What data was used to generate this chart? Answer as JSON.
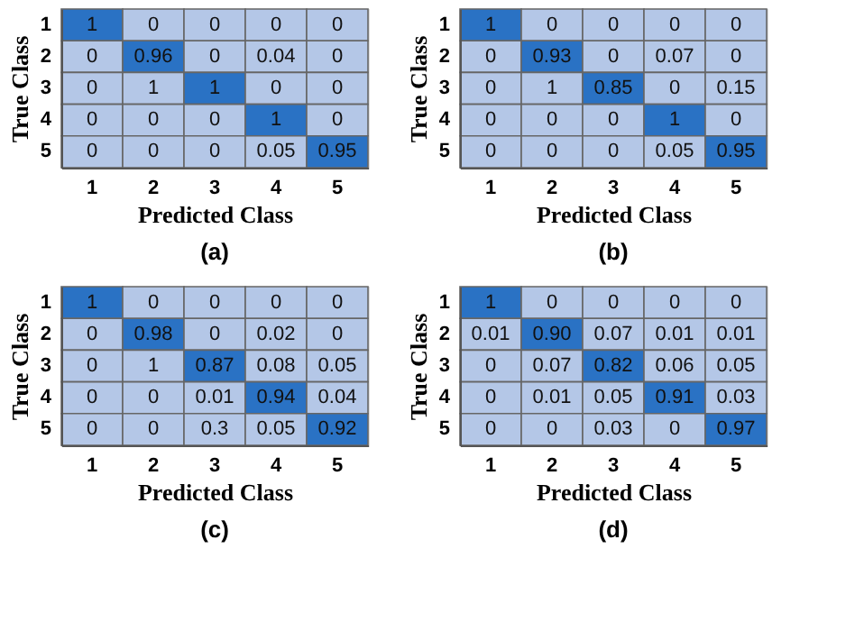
{
  "chart_data": [
    {
      "type": "heatmap",
      "title": "(a)",
      "xlabel": "Predicted Class",
      "ylabel": "True Class",
      "categories": [
        "1",
        "2",
        "3",
        "4",
        "5"
      ],
      "y_categories": [
        "1",
        "2",
        "3",
        "4",
        "5"
      ],
      "data_labels": true,
      "cells": [
        [
          1,
          0,
          0,
          0,
          0
        ],
        [
          0,
          0.96,
          0,
          0.04,
          0
        ],
        [
          0,
          1,
          1,
          0,
          0
        ],
        [
          0,
          0,
          0,
          1,
          0
        ],
        [
          0,
          0,
          0,
          0.05,
          0.95
        ]
      ],
      "colors": [
        [
          "#2a72c4",
          "#b4c7e7",
          "#b4c7e7",
          "#b4c7e7",
          "#b4c7e7"
        ],
        [
          "#b4c7e7",
          "#2a72c4",
          "#b4c7e7",
          "#b4c7e7",
          "#b4c7e7"
        ],
        [
          "#b4c7e7",
          "#b4c7e7",
          "#2a72c4",
          "#b4c7e7",
          "#b4c7e7"
        ],
        [
          "#b4c7e7",
          "#b4c7e7",
          "#b4c7e7",
          "#2a72c4",
          "#b4c7e7"
        ],
        [
          "#b4c7e7",
          "#b4c7e7",
          "#b4c7e7",
          "#b4c7e7",
          "#2a72c4"
        ]
      ]
    },
    {
      "type": "heatmap",
      "title": "(b)",
      "xlabel": "Predicted Class",
      "ylabel": "True Class",
      "categories": [
        "1",
        "2",
        "3",
        "4",
        "5"
      ],
      "y_categories": [
        "1",
        "2",
        "3",
        "4",
        "5"
      ],
      "data_labels": true,
      "cells": [
        [
          1,
          0,
          0,
          0,
          0
        ],
        [
          0,
          0.93,
          0,
          0.07,
          0
        ],
        [
          0,
          1,
          0.85,
          0,
          0.15
        ],
        [
          0,
          0,
          0,
          1,
          0
        ],
        [
          0,
          0,
          0,
          0.05,
          0.95
        ]
      ],
      "colors": [
        [
          "#2a72c4",
          "#b4c7e7",
          "#b4c7e7",
          "#b4c7e7",
          "#b4c7e7"
        ],
        [
          "#b4c7e7",
          "#2a72c4",
          "#b4c7e7",
          "#b4c7e7",
          "#b4c7e7"
        ],
        [
          "#b4c7e7",
          "#b4c7e7",
          "#2a72c4",
          "#b4c7e7",
          "#b4c7e7"
        ],
        [
          "#b4c7e7",
          "#b4c7e7",
          "#b4c7e7",
          "#2a72c4",
          "#b4c7e7"
        ],
        [
          "#b4c7e7",
          "#b4c7e7",
          "#b4c7e7",
          "#b4c7e7",
          "#2a72c4"
        ]
      ]
    },
    {
      "type": "heatmap",
      "title": "(c)",
      "xlabel": "Predicted Class",
      "ylabel": "True Class",
      "categories": [
        "1",
        "2",
        "3",
        "4",
        "5"
      ],
      "y_categories": [
        "1",
        "2",
        "3",
        "4",
        "5"
      ],
      "data_labels": true,
      "cells": [
        [
          1,
          0,
          0,
          0,
          0
        ],
        [
          0,
          0.98,
          0,
          0.02,
          0
        ],
        [
          0,
          1,
          0.87,
          0.08,
          0.05
        ],
        [
          0,
          0,
          0.01,
          0.94,
          0.04
        ],
        [
          0,
          0,
          0.3,
          0.05,
          0.92
        ]
      ],
      "colors": [
        [
          "#2a72c4",
          "#b4c7e7",
          "#b4c7e7",
          "#b4c7e7",
          "#b4c7e7"
        ],
        [
          "#b4c7e7",
          "#2a72c4",
          "#b4c7e7",
          "#b4c7e7",
          "#b4c7e7"
        ],
        [
          "#b4c7e7",
          "#b4c7e7",
          "#2a72c4",
          "#b4c7e7",
          "#b4c7e7"
        ],
        [
          "#b4c7e7",
          "#b4c7e7",
          "#b4c7e7",
          "#2a72c4",
          "#b4c7e7"
        ],
        [
          "#b4c7e7",
          "#b4c7e7",
          "#b4c7e7",
          "#b4c7e7",
          "#2a72c4"
        ]
      ]
    },
    {
      "type": "heatmap",
      "title": "(d)",
      "xlabel": "Predicted Class",
      "ylabel": "True Class",
      "categories": [
        "1",
        "2",
        "3",
        "4",
        "5"
      ],
      "y_categories": [
        "1",
        "2",
        "3",
        "4",
        "5"
      ],
      "data_labels": true,
      "cells": [
        [
          1,
          0,
          0,
          0,
          0
        ],
        [
          0.01,
          0.9,
          0.07,
          0.01,
          0.01
        ],
        [
          0,
          0.07,
          0.82,
          0.06,
          0.05
        ],
        [
          0,
          0.01,
          0.05,
          0.91,
          0.03
        ],
        [
          0,
          0,
          0.03,
          0,
          0.97
        ]
      ],
      "cell_labels": [
        [
          "1",
          "0",
          "0",
          "0",
          "0"
        ],
        [
          "0.01",
          "0.90",
          "0.07",
          "0.01",
          "0.01"
        ],
        [
          "0",
          "0.07",
          "0.82",
          "0.06",
          "0.05"
        ],
        [
          "0",
          "0.01",
          "0.05",
          "0.91",
          "0.03"
        ],
        [
          "0",
          "0",
          "0.03",
          "0",
          "0.97"
        ]
      ],
      "colors": [
        [
          "#2a72c4",
          "#b4c7e7",
          "#b4c7e7",
          "#b4c7e7",
          "#b4c7e7"
        ],
        [
          "#b4c7e7",
          "#2a72c4",
          "#b4c7e7",
          "#b4c7e7",
          "#b4c7e7"
        ],
        [
          "#b4c7e7",
          "#b4c7e7",
          "#2a72c4",
          "#b4c7e7",
          "#b4c7e7"
        ],
        [
          "#b4c7e7",
          "#b4c7e7",
          "#b4c7e7",
          "#2a72c4",
          "#b4c7e7"
        ],
        [
          "#b4c7e7",
          "#b4c7e7",
          "#b4c7e7",
          "#b4c7e7",
          "#2a72c4"
        ]
      ]
    }
  ]
}
